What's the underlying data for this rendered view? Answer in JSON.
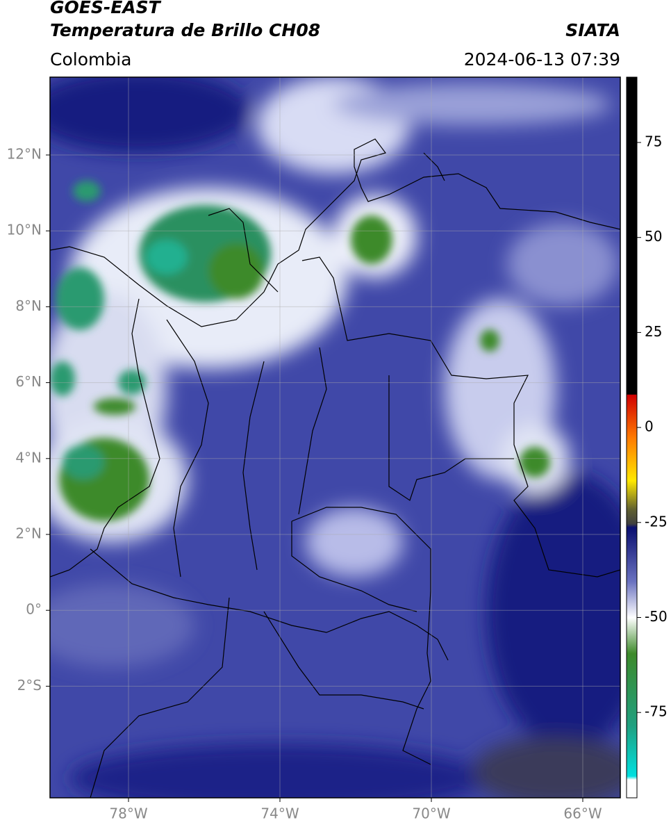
{
  "header": {
    "title": "GOES-EAST",
    "subtitle": "Temperatura de Brillo CH08",
    "source": "SIATA",
    "region": "Colombia",
    "datetime": "2024-06-13 07:39"
  },
  "map": {
    "lat_labels": [
      "12°N",
      "10°N",
      "8°N",
      "6°N",
      "4°N",
      "2°N",
      "0°",
      "2°S"
    ],
    "lon_labels": [
      "78°W",
      "74°W",
      "70°W",
      "66°W"
    ]
  },
  "colorbar": {
    "ticks": [
      75,
      50,
      25,
      0,
      -25,
      -50,
      -75
    ]
  }
}
